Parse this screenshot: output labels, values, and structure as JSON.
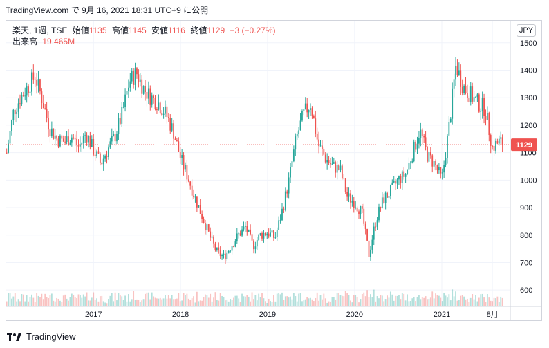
{
  "header": {
    "title": "TradingView.com で 9月 16, 2021 18:31 UTC+9 に公開"
  },
  "legend": {
    "symbol": "楽天, 1週, TSE",
    "open_label": "始値",
    "open": "1135",
    "high_label": "高値",
    "high": "1145",
    "low_label": "安値",
    "low": "1116",
    "close_label": "終値",
    "close": "1129",
    "change": "−3 (−0.27%)",
    "volume_label": "出来高",
    "volume": "19.465M"
  },
  "currency": "JPY",
  "price_marker": "1129",
  "footer": {
    "brand": "TradingView"
  },
  "colors": {
    "up": "#26a69a",
    "down": "#ef5350",
    "grid": "#f0f3fa",
    "text": "#131722"
  },
  "chart_data": {
    "type": "candlestick",
    "interval": "1 week",
    "y_ticks": [
      "600",
      "700",
      "800",
      "900",
      "1000",
      "1100",
      "1200",
      "1300",
      "1400",
      "1500"
    ],
    "y_range": [
      540,
      1580
    ],
    "x_ticks": [
      {
        "label": "2017",
        "date": "2017-01-01"
      },
      {
        "label": "2018",
        "date": "2018-01-01"
      },
      {
        "label": "2019",
        "date": "2019-01-01"
      },
      {
        "label": "2020",
        "date": "2020-01-01"
      },
      {
        "label": "2021",
        "date": "2021-01-01"
      },
      {
        "label": "8月",
        "date": "2021-08-01"
      }
    ],
    "x_range": [
      "2016-01-01",
      "2021-10-15"
    ],
    "last_close": 1129,
    "closes": [
      {
        "date": "2016-01-03",
        "close": 1100
      },
      {
        "date": "2016-02-01",
        "close": 1250
      },
      {
        "date": "2016-03-01",
        "close": 1300
      },
      {
        "date": "2016-04-01",
        "close": 1340
      },
      {
        "date": "2016-05-01",
        "close": 1380
      },
      {
        "date": "2016-06-01",
        "close": 1290
      },
      {
        "date": "2016-07-01",
        "close": 1190
      },
      {
        "date": "2016-08-01",
        "close": 1150
      },
      {
        "date": "2016-09-01",
        "close": 1140
      },
      {
        "date": "2016-10-01",
        "close": 1160
      },
      {
        "date": "2016-11-01",
        "close": 1120
      },
      {
        "date": "2016-12-01",
        "close": 1170
      },
      {
        "date": "2017-01-01",
        "close": 1110
      },
      {
        "date": "2017-02-01",
        "close": 1060
      },
      {
        "date": "2017-03-01",
        "close": 1110
      },
      {
        "date": "2017-04-01",
        "close": 1160
      },
      {
        "date": "2017-05-01",
        "close": 1240
      },
      {
        "date": "2017-06-01",
        "close": 1360
      },
      {
        "date": "2017-07-01",
        "close": 1390
      },
      {
        "date": "2017-08-01",
        "close": 1330
      },
      {
        "date": "2017-09-01",
        "close": 1300
      },
      {
        "date": "2017-10-01",
        "close": 1280
      },
      {
        "date": "2017-11-01",
        "close": 1240
      },
      {
        "date": "2017-12-01",
        "close": 1180
      },
      {
        "date": "2018-01-01",
        "close": 1080
      },
      {
        "date": "2018-02-01",
        "close": 1010
      },
      {
        "date": "2018-03-01",
        "close": 940
      },
      {
        "date": "2018-04-01",
        "close": 870
      },
      {
        "date": "2018-05-01",
        "close": 800
      },
      {
        "date": "2018-06-01",
        "close": 740
      },
      {
        "date": "2018-07-01",
        "close": 720
      },
      {
        "date": "2018-08-01",
        "close": 760
      },
      {
        "date": "2018-09-01",
        "close": 800
      },
      {
        "date": "2018-10-01",
        "close": 830
      },
      {
        "date": "2018-11-01",
        "close": 760
      },
      {
        "date": "2018-12-01",
        "close": 800
      },
      {
        "date": "2019-01-01",
        "close": 810
      },
      {
        "date": "2019-02-01",
        "close": 790
      },
      {
        "date": "2019-03-01",
        "close": 880
      },
      {
        "date": "2019-04-01",
        "close": 1000
      },
      {
        "date": "2019-05-01",
        "close": 1150
      },
      {
        "date": "2019-06-01",
        "close": 1240
      },
      {
        "date": "2019-07-01",
        "close": 1280
      },
      {
        "date": "2019-08-01",
        "close": 1130
      },
      {
        "date": "2019-09-01",
        "close": 1080
      },
      {
        "date": "2019-10-01",
        "close": 1050
      },
      {
        "date": "2019-11-01",
        "close": 1040
      },
      {
        "date": "2019-12-01",
        "close": 940
      },
      {
        "date": "2020-01-01",
        "close": 920
      },
      {
        "date": "2020-02-01",
        "close": 880
      },
      {
        "date": "2020-03-01",
        "close": 730
      },
      {
        "date": "2020-04-01",
        "close": 860
      },
      {
        "date": "2020-05-01",
        "close": 930
      },
      {
        "date": "2020-06-01",
        "close": 960
      },
      {
        "date": "2020-07-01",
        "close": 1000
      },
      {
        "date": "2020-08-01",
        "close": 1020
      },
      {
        "date": "2020-09-01",
        "close": 1100
      },
      {
        "date": "2020-10-01",
        "close": 1180
      },
      {
        "date": "2020-11-01",
        "close": 1090
      },
      {
        "date": "2020-12-01",
        "close": 1060
      },
      {
        "date": "2021-01-01",
        "close": 1000
      },
      {
        "date": "2021-02-01",
        "close": 1200
      },
      {
        "date": "2021-03-01",
        "close": 1420
      },
      {
        "date": "2021-04-01",
        "close": 1340
      },
      {
        "date": "2021-05-01",
        "close": 1310
      },
      {
        "date": "2021-06-01",
        "close": 1280
      },
      {
        "date": "2021-07-01",
        "close": 1260
      },
      {
        "date": "2021-08-01",
        "close": 1120
      },
      {
        "date": "2021-09-01",
        "close": 1140
      },
      {
        "date": "2021-09-16",
        "close": 1129
      }
    ]
  }
}
